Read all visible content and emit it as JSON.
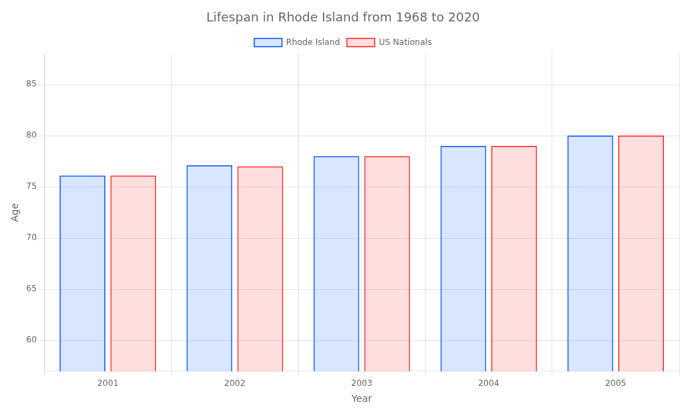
{
  "chart_data": {
    "type": "bar",
    "title": "Lifespan in Rhode Island from 1968 to 2020",
    "xlabel": "Year",
    "ylabel": "Age",
    "categories": [
      "2001",
      "2002",
      "2003",
      "2004",
      "2005"
    ],
    "series": [
      {
        "name": "Rhode Island",
        "color": "#0055ff",
        "values": [
          76.1,
          77.1,
          78.0,
          79.0,
          80.0
        ]
      },
      {
        "name": "US Nationals",
        "color": "#ff2222",
        "values": [
          76.1,
          77.0,
          78.0,
          79.0,
          80.0
        ]
      }
    ],
    "ylim": [
      57,
      88
    ],
    "yticks": [
      60,
      65,
      70,
      75,
      80,
      85
    ],
    "grid": true,
    "legend": "top"
  }
}
